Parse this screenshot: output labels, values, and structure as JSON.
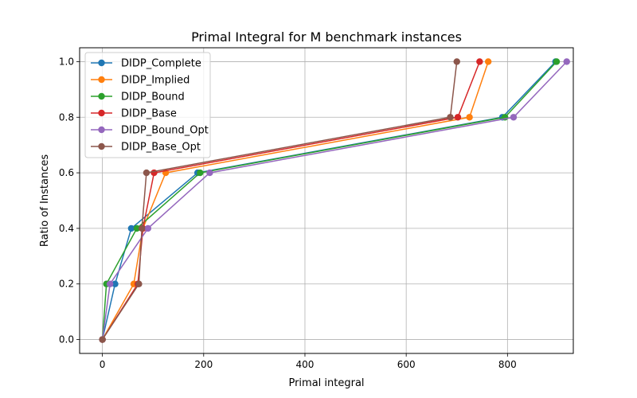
{
  "chart_data": {
    "type": "line",
    "title": "Primal Integral for M benchmark instances",
    "xlabel": "Primal integral",
    "ylabel": "Ratio of Instances",
    "xlim": [
      -45,
      930
    ],
    "ylim": [
      -0.05,
      1.05
    ],
    "xticks": [
      0,
      200,
      400,
      600,
      800
    ],
    "yticks": [
      0.0,
      0.2,
      0.4,
      0.6,
      0.8,
      1.0
    ],
    "xtick_labels": [
      "0",
      "200",
      "400",
      "600",
      "800"
    ],
    "ytick_labels": [
      "0.0",
      "0.2",
      "0.4",
      "0.6",
      "0.8",
      "1.0"
    ],
    "grid": true,
    "legend": "top-left",
    "series": [
      {
        "name": "DIDP_Complete",
        "color": "#1f77b4",
        "x": [
          0,
          25,
          57,
          188,
          790,
          895
        ],
        "y": [
          0.0,
          0.2,
          0.4,
          0.6,
          0.8,
          1.0
        ]
      },
      {
        "name": "DIDP_Implied",
        "color": "#ff7f0e",
        "x": [
          0,
          62,
          80,
          125,
          725,
          762
        ],
        "y": [
          0.0,
          0.2,
          0.4,
          0.6,
          0.8,
          1.0
        ]
      },
      {
        "name": "DIDP_Bound",
        "color": "#2ca02c",
        "x": [
          0,
          8,
          68,
          193,
          795,
          897
        ],
        "y": [
          0.0,
          0.2,
          0.4,
          0.6,
          0.8,
          1.0
        ]
      },
      {
        "name": "DIDP_Base",
        "color": "#d62728",
        "x": [
          0,
          70,
          80,
          102,
          702,
          745
        ],
        "y": [
          0.0,
          0.2,
          0.4,
          0.6,
          0.8,
          1.0
        ]
      },
      {
        "name": "DIDP_Bound_Opt",
        "color": "#9467bd",
        "x": [
          0,
          15,
          90,
          212,
          812,
          917
        ],
        "y": [
          0.0,
          0.2,
          0.4,
          0.6,
          0.8,
          1.0
        ]
      },
      {
        "name": "DIDP_Base_Opt",
        "color": "#8c564b",
        "x": [
          0,
          72,
          78,
          87,
          687,
          700
        ],
        "y": [
          0.0,
          0.2,
          0.4,
          0.6,
          0.8,
          1.0
        ]
      }
    ]
  }
}
